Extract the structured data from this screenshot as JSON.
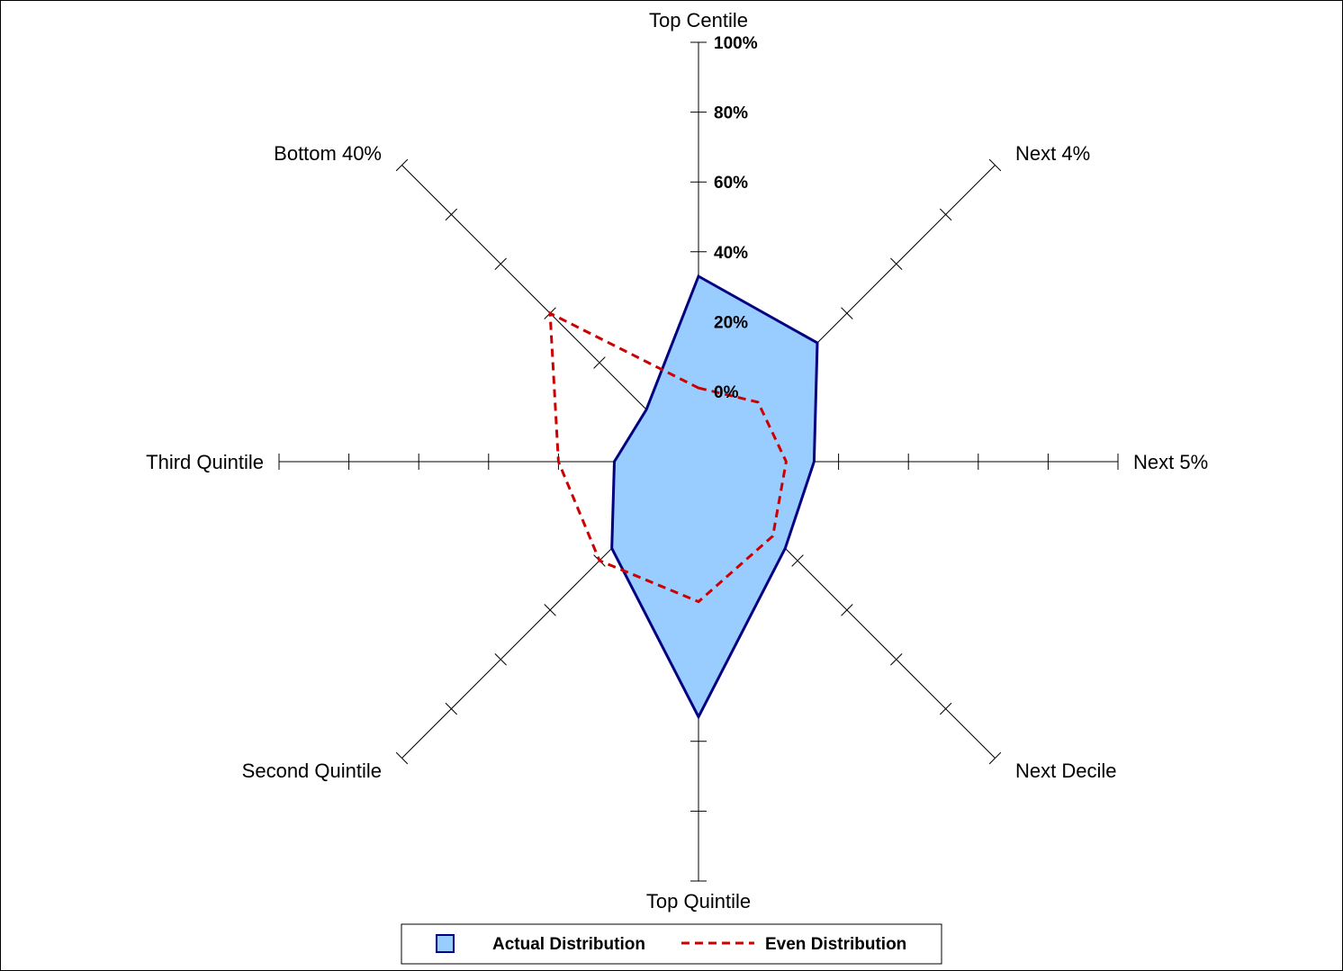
{
  "chart_data": {
    "type": "radar",
    "title": "",
    "axes": [
      "Top Centile",
      "Next 4%",
      "Next 5%",
      "Next Decile",
      "Top Quintile",
      "Second Quintile",
      "Third Quintile",
      "Bottom 40%"
    ],
    "rlim": [
      0,
      100
    ],
    "r_ticks": [
      "0%",
      "20%",
      "40%",
      "60%",
      "80%",
      "100%"
    ],
    "grid": false,
    "legend_position": "bottom",
    "series": [
      {
        "name": "Actual Distribution",
        "style": "filled",
        "fill_color": "#99CCFF",
        "line_color": "#000080",
        "values": [
          33,
          28,
          13,
          15,
          53,
          15,
          4,
          1
        ]
      },
      {
        "name": "Even Distribution",
        "style": "dashed",
        "line_color": "#CC0000",
        "values": [
          1,
          4,
          5,
          10,
          20,
          20,
          20,
          40
        ]
      }
    ]
  }
}
